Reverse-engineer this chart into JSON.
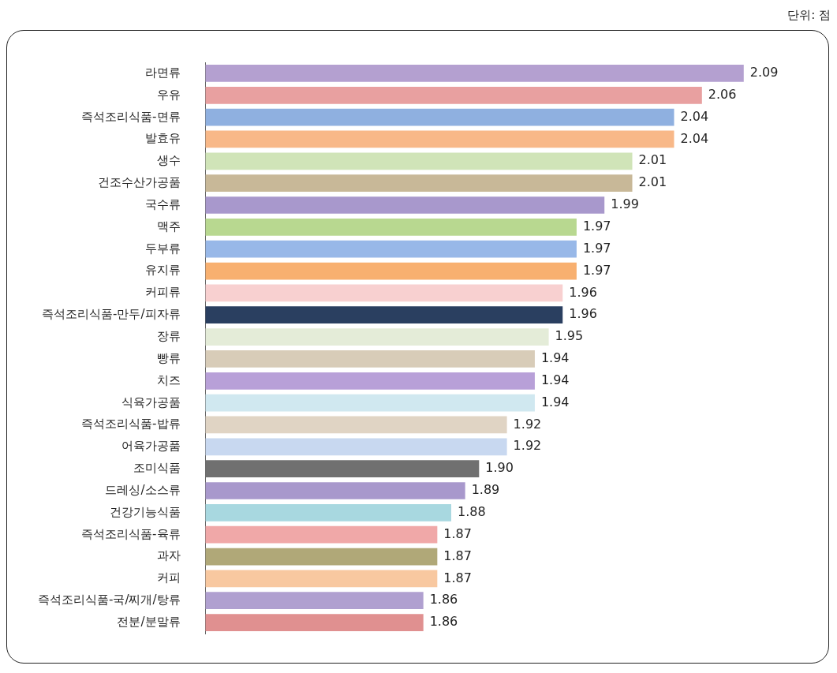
{
  "chart_data": {
    "type": "bar",
    "orientation": "horizontal",
    "categories": [
      "라면류",
      "우유",
      "즉석조리식품-면류",
      "발효유",
      "생수",
      "건조수산가공품",
      "국수류",
      "맥주",
      "두부류",
      "유지류",
      "커피류",
      "즉석조리식품-만두/피자류",
      "장류",
      "빵류",
      "치즈",
      "식육가공품",
      "즉석조리식품-밥류",
      "어육가공품",
      "조미식품",
      "드레싱/소스류",
      "건강기능식품",
      "즉석조리식품-육류",
      "과자",
      "커피",
      "즉석조리식품-국/찌개/탕류",
      "전분/분말류"
    ],
    "values": [
      2.09,
      2.06,
      2.04,
      2.04,
      2.01,
      2.01,
      1.99,
      1.97,
      1.97,
      1.97,
      1.96,
      1.96,
      1.95,
      1.94,
      1.94,
      1.94,
      1.92,
      1.92,
      1.9,
      1.89,
      1.88,
      1.87,
      1.87,
      1.87,
      1.86,
      1.86
    ],
    "value_labels": [
      "2.09",
      "2.06",
      "2.04",
      "2.04",
      "2.01",
      "2.01",
      "1.99",
      "1.97",
      "1.97",
      "1.97",
      "1.96",
      "1.96",
      "1.95",
      "1.94",
      "1.94",
      "1.94",
      "1.92",
      "1.92",
      "1.90",
      "1.89",
      "1.88",
      "1.87",
      "1.87",
      "1.87",
      "1.86",
      "1.86"
    ],
    "colors": [
      "#b4a0d0",
      "#e8a0a0",
      "#8fb0e0",
      "#f8b888",
      "#d0e4b8",
      "#c8b898",
      "#a898cc",
      "#b8d890",
      "#98b8e8",
      "#f8b070",
      "#f8d0d0",
      "#2a3f60",
      "#e4ecd8",
      "#d8ccb8",
      "#b8a0d8",
      "#d0e8f0",
      "#e0d4c4",
      "#c8d8f0",
      "#707070",
      "#a898cc",
      "#a8d8e0",
      "#f0a8a8",
      "#b0a878",
      "#f8c8a0",
      "#b0a0d0",
      "#e09090"
    ],
    "tick_labels": "y",
    "annotations": [
      "단위: 점"
    ]
  }
}
